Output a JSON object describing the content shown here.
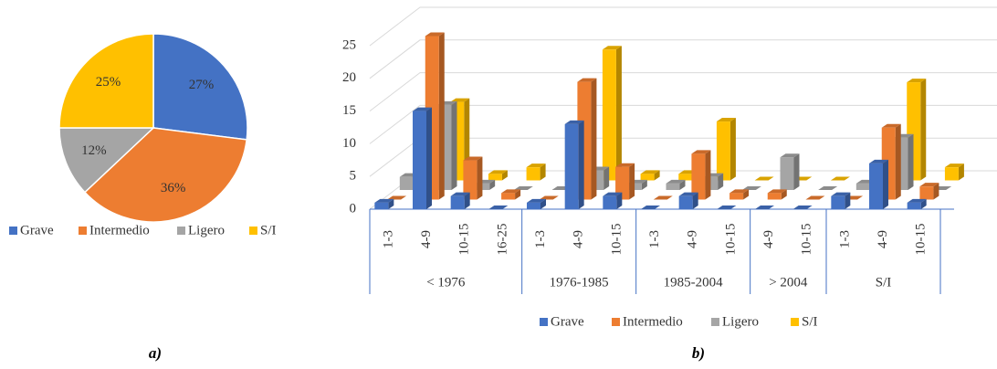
{
  "chart_data": [
    {
      "type": "pie",
      "caption": "a)",
      "categories": [
        "Grave",
        "Intermedio",
        "Ligero",
        "S/I"
      ],
      "values": [
        27,
        36,
        12,
        25
      ],
      "value_labels": [
        "27%",
        "36%",
        "12%",
        "25%"
      ],
      "colors": [
        "#4472c4",
        "#ed7d31",
        "#a5a5a5",
        "#ffc000"
      ],
      "legend": "bottom"
    },
    {
      "type": "bar3d",
      "caption": "b)",
      "groups": [
        {
          "name": "< 1976",
          "categories": [
            "1-3",
            "4-9",
            "10-15",
            "16-25"
          ]
        },
        {
          "name": "1976-1985",
          "categories": [
            "1-3",
            "4-9",
            "10-15"
          ]
        },
        {
          "name": "1985-2004",
          "categories": [
            "1-3",
            "4-9",
            "10-15"
          ]
        },
        {
          "name": "> 2004",
          "categories": [
            "4-9",
            "10-15"
          ]
        },
        {
          "name": "S/I",
          "categories": [
            "1-3",
            "4-9",
            "10-15"
          ]
        }
      ],
      "series": [
        {
          "name": "Grave",
          "color": "#4472c4",
          "values": [
            1,
            15,
            2,
            0,
            1,
            13,
            2,
            0,
            2,
            0,
            0,
            0,
            2,
            7,
            1
          ]
        },
        {
          "name": "Intermedio",
          "color": "#ed7d31",
          "values": [
            0,
            25,
            6,
            1,
            0,
            18,
            5,
            0,
            7,
            1,
            1,
            0,
            0,
            11,
            2
          ]
        },
        {
          "name": "Ligero",
          "color": "#a5a5a5",
          "values": [
            2,
            13,
            1,
            0,
            0,
            3,
            1,
            1,
            2,
            0,
            5,
            0,
            1,
            8,
            0
          ]
        },
        {
          "name": "S/I",
          "color": "#ffc000",
          "values": [
            0,
            12,
            1,
            2,
            0,
            20,
            1,
            1,
            9,
            0,
            0,
            0,
            0,
            15,
            2
          ]
        }
      ],
      "ylim": [
        0,
        25
      ],
      "yticks": [
        0,
        5,
        10,
        15,
        20,
        25
      ],
      "grid": true,
      "legend": "bottom"
    }
  ]
}
